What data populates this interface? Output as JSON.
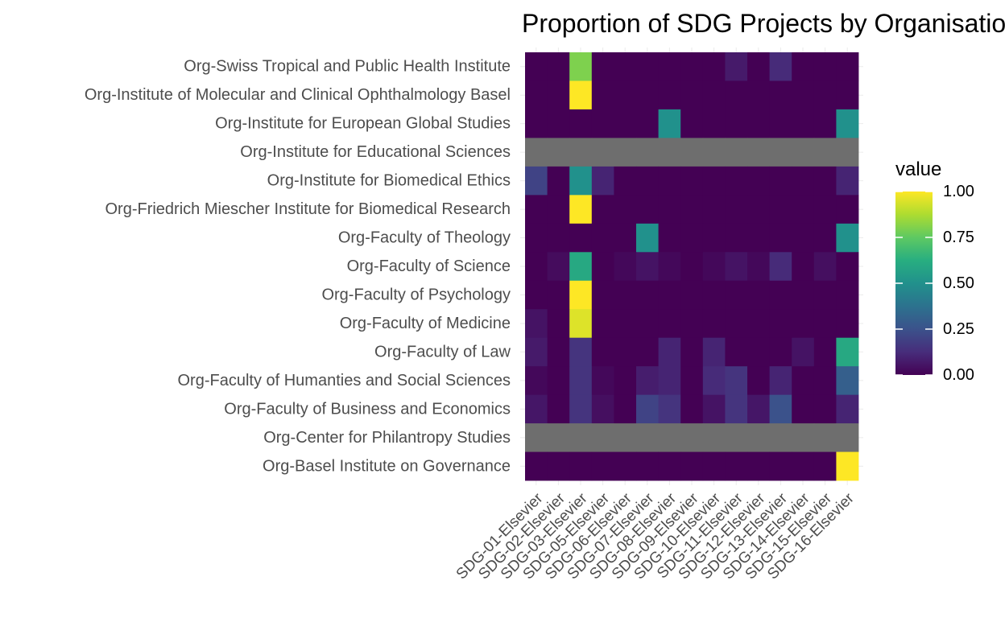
{
  "chart_data": {
    "type": "heatmap",
    "title": "Proportion of SDG Projects by Organisation",
    "x_categories": [
      "SDG-01-Elsevier",
      "SDG-02-Elsevier",
      "SDG-03-Elsevier",
      "SDG-05-Elsevier",
      "SDG-06-Elsevier",
      "SDG-07-Elsevier",
      "SDG-08-Elsevier",
      "SDG-09-Elsevier",
      "SDG-10-Elsevier",
      "SDG-11-Elsevier",
      "SDG-12-Elsevier",
      "SDG-13-Elsevier",
      "SDG-14-Elsevier",
      "SDG-15-Elsevier",
      "SDG-16-Elsevier"
    ],
    "y_categories": [
      "Org-Swiss Tropical and Public Health Institute",
      "Org-Institute of Molecular and Clinical Ophthalmology Basel",
      "Org-Institute for European Global Studies",
      "Org-Institute for Educational Sciences",
      "Org-Institute for Biomedical Ethics",
      "Org-Friedrich Miescher Institute for Biomedical Research",
      "Org-Faculty of Theology",
      "Org-Faculty of Science",
      "Org-Faculty of Psychology",
      "Org-Faculty of Medicine",
      "Org-Faculty of Law",
      "Org-Faculty of Humanties and Social Sciences",
      "Org-Faculty of Business and Economics",
      "Org-Center for Philantropy Studies",
      "Org-Basel Institute on Governance"
    ],
    "values": [
      [
        0,
        0,
        0.8,
        0,
        0,
        0,
        0,
        0,
        0,
        0.07,
        0,
        0.12,
        0,
        0,
        0
      ],
      [
        0,
        0,
        1.0,
        0,
        0,
        0,
        0,
        0,
        0,
        0,
        0,
        0,
        0,
        0,
        0
      ],
      [
        0,
        0,
        0,
        0,
        0,
        0,
        0.5,
        0,
        0,
        0,
        0,
        0,
        0,
        0,
        0.5
      ],
      [
        null,
        null,
        null,
        null,
        null,
        null,
        null,
        null,
        null,
        null,
        null,
        null,
        null,
        null,
        null
      ],
      [
        0.2,
        0,
        0.5,
        0.1,
        0,
        0,
        0,
        0,
        0,
        0,
        0,
        0,
        0,
        0,
        0.1
      ],
      [
        0,
        0,
        1.0,
        0,
        0,
        0,
        0,
        0,
        0,
        0,
        0,
        0,
        0,
        0,
        0
      ],
      [
        0,
        0,
        0,
        0,
        0,
        0.5,
        0,
        0,
        0,
        0,
        0,
        0,
        0,
        0,
        0.5
      ],
      [
        0,
        0.03,
        0.6,
        0,
        0.02,
        0.05,
        0.02,
        0,
        0.02,
        0.05,
        0.02,
        0.12,
        0,
        0.04,
        0
      ],
      [
        0,
        0,
        1.0,
        0,
        0,
        0,
        0,
        0,
        0,
        0,
        0,
        0,
        0,
        0,
        0
      ],
      [
        0.05,
        0,
        0.95,
        0,
        0,
        0,
        0,
        0,
        0,
        0,
        0,
        0,
        0,
        0,
        0
      ],
      [
        0.07,
        0,
        0.15,
        0,
        0,
        0,
        0.1,
        0,
        0.1,
        0,
        0,
        0,
        0.05,
        0,
        0.6
      ],
      [
        0.02,
        0,
        0.15,
        0.02,
        0,
        0.08,
        0.1,
        0,
        0.12,
        0.15,
        0,
        0.1,
        0,
        0,
        0.3
      ],
      [
        0.06,
        0,
        0.15,
        0.04,
        0,
        0.2,
        0.15,
        0,
        0.05,
        0.15,
        0.06,
        0.25,
        0,
        0,
        0.1
      ],
      [
        null,
        null,
        null,
        null,
        null,
        null,
        null,
        null,
        null,
        null,
        null,
        null,
        null,
        null,
        null
      ],
      [
        0,
        0,
        0,
        0,
        0,
        0,
        0,
        0,
        0,
        0,
        0,
        0,
        0,
        0,
        1.0
      ]
    ],
    "na_color": "#6e6e6e",
    "color_scale": "viridis",
    "legend": {
      "title": "value",
      "placement": "right",
      "ticks": [
        "1.00",
        "0.75",
        "0.50",
        "0.25",
        "0.00"
      ],
      "range": [
        0,
        1
      ]
    }
  }
}
